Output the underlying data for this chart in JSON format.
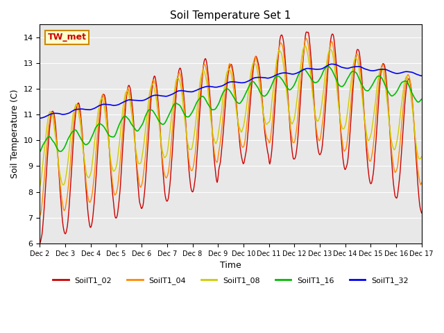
{
  "title": "Soil Temperature Set 1",
  "ylabel": "Soil Temperature (C)",
  "xlabel": "Time",
  "annotation": "TW_met",
  "ylim": [
    6.0,
    14.5
  ],
  "yticks": [
    6.0,
    7.0,
    8.0,
    9.0,
    10.0,
    11.0,
    12.0,
    13.0,
    14.0
  ],
  "xtick_labels": [
    "Dec 2",
    "Dec 3",
    "Dec 4",
    "Dec 5",
    "Dec 6",
    "Dec 7",
    "Dec 8",
    "Dec 9",
    "Dec 10",
    "Dec 11",
    "Dec 12",
    "Dec 13",
    "Dec 14",
    "Dec 15",
    "Dec 16",
    "Dec 17"
  ],
  "colors": {
    "SoilT1_02": "#cc0000",
    "SoilT1_04": "#ff8800",
    "SoilT1_08": "#cccc00",
    "SoilT1_16": "#00bb00",
    "SoilT1_32": "#0000ee"
  },
  "bg_color": "#e8e8e8"
}
